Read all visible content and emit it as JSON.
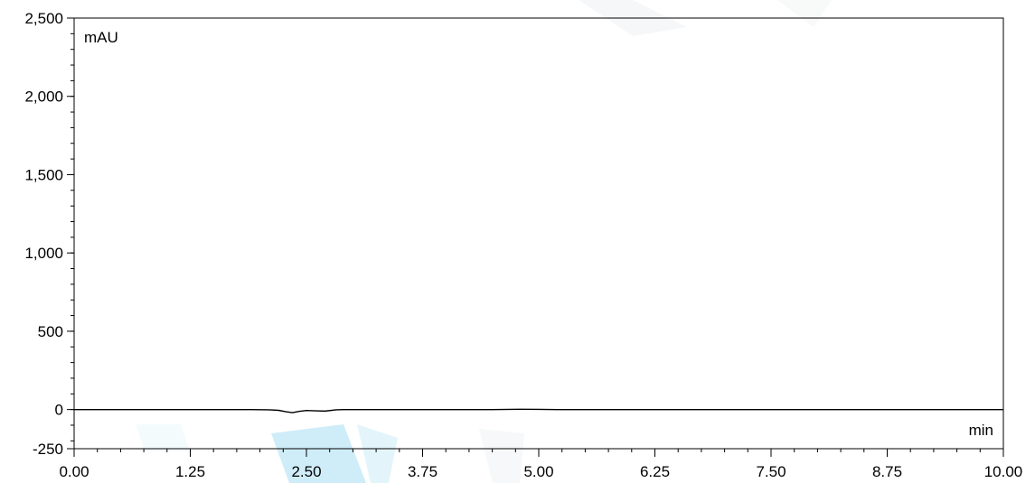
{
  "chart_data": {
    "type": "line",
    "title": "",
    "ylabel": "mAU",
    "xlabel": "min",
    "xlim": [
      0,
      10
    ],
    "ylim": [
      -250,
      2500
    ],
    "x_ticks": [
      0,
      1.25,
      2.5,
      3.75,
      5,
      6.25,
      7.5,
      8.75,
      10
    ],
    "x_tick_labels": [
      "0.00",
      "1.25",
      "2.50",
      "3.75",
      "5.00",
      "6.25",
      "7.50",
      "8.75",
      "10.00"
    ],
    "y_ticks": [
      -250,
      0,
      500,
      1000,
      1500,
      2000,
      2500
    ],
    "y_tick_labels": [
      "-250",
      "0",
      "500",
      "1,000",
      "1,500",
      "2,000",
      "2,500"
    ],
    "grid": false,
    "series": [
      {
        "color": "#000000",
        "x": [
          0,
          1.0,
          1.9,
          2.1,
          2.2,
          2.28,
          2.35,
          2.42,
          2.5,
          2.6,
          2.7,
          2.82,
          2.9,
          3.5,
          4.5,
          4.8,
          5.0,
          5.2,
          6.5,
          8.0,
          10.0
        ],
        "y": [
          0,
          0,
          0,
          -2,
          -5,
          -14,
          -20,
          -12,
          -6,
          -8,
          -10,
          -2,
          0,
          0,
          0,
          2,
          1,
          0,
          0,
          0,
          0
        ]
      }
    ]
  }
}
